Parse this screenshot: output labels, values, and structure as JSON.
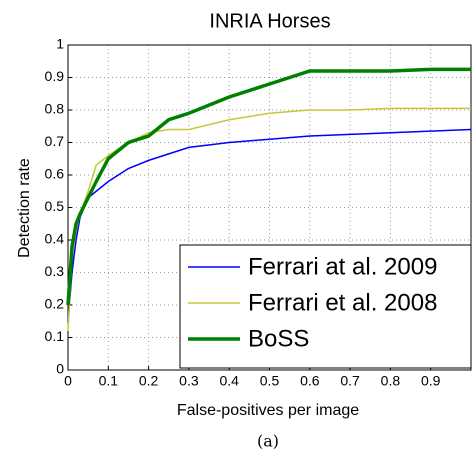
{
  "chart_data": {
    "type": "line",
    "title": "INRIA Horses",
    "x_label": "False-positives per image",
    "y_label": "Detection rate",
    "caption": "(a)",
    "x": [
      0,
      0.01,
      0.02,
      0.03,
      0.05,
      0.07,
      0.1,
      0.15,
      0.2,
      0.25,
      0.3,
      0.4,
      0.5,
      0.6,
      0.7,
      0.8,
      0.9,
      1.0
    ],
    "series": [
      {
        "name": "Ferrari at al. 2009",
        "color": "#0000ff",
        "width": 1.5,
        "values": [
          0.15,
          0.3,
          0.4,
          0.47,
          0.53,
          0.55,
          0.58,
          0.62,
          0.645,
          0.665,
          0.685,
          0.7,
          0.71,
          0.72,
          0.725,
          0.73,
          0.735,
          0.74
        ]
      },
      {
        "name": "Ferrari et al. 2008",
        "color": "#c8c832",
        "width": 1.5,
        "values": [
          0.12,
          0.35,
          0.43,
          0.48,
          0.55,
          0.63,
          0.66,
          0.7,
          0.73,
          0.74,
          0.74,
          0.77,
          0.79,
          0.8,
          0.8,
          0.805,
          0.805,
          0.805
        ]
      },
      {
        "name": "BoSS",
        "color": "#008000",
        "width": 3.5,
        "values": [
          0.2,
          0.38,
          0.45,
          0.48,
          0.53,
          0.58,
          0.65,
          0.7,
          0.72,
          0.77,
          0.79,
          0.84,
          0.88,
          0.92,
          0.92,
          0.92,
          0.925,
          0.925
        ]
      }
    ],
    "xlim": [
      0,
      1
    ],
    "ylim": [
      0,
      1
    ],
    "xticks": [
      0,
      0.1,
      0.2,
      0.3,
      0.4,
      0.5,
      0.6,
      0.7,
      0.8,
      0.9
    ],
    "yticks": [
      0,
      0.1,
      0.2,
      0.3,
      0.4,
      0.5,
      0.6,
      0.7,
      0.8,
      0.9,
      1
    ],
    "grid": true,
    "legend": "lower right"
  }
}
